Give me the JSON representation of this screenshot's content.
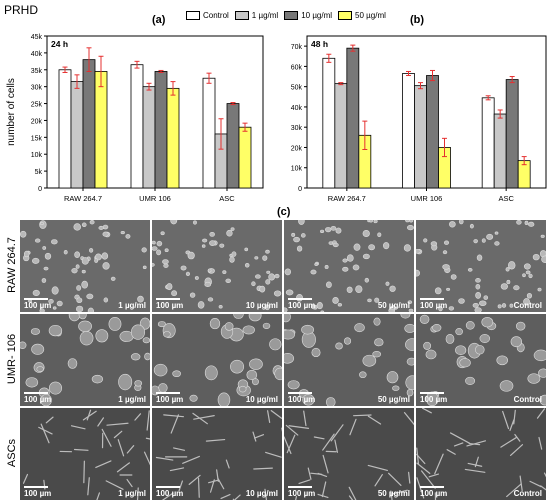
{
  "figure": {
    "header": "PRHD",
    "panel_a_label": "(a)",
    "panel_b_label": "(b)",
    "panel_c_label": "(c)"
  },
  "legend": {
    "entries": [
      {
        "label": "Control",
        "color": "#ffffff"
      },
      {
        "label": "1  µg/ml",
        "color": "#c8c8c8"
      },
      {
        "label": "10 µg/ml",
        "color": "#787878"
      },
      {
        "label": "50 µg/ml",
        "color": "#ffff66"
      }
    ]
  },
  "chart_data": [
    {
      "type": "bar",
      "panel": "(a)",
      "inset_label": "24 h",
      "ylabel": "number of cells",
      "ylim": [
        0,
        45000
      ],
      "yticks": [
        "0",
        "5k",
        "10k",
        "15k",
        "20k",
        "25k",
        "30k",
        "35k",
        "40k",
        "45k"
      ],
      "categories": [
        "RAW 264.7",
        "UMR 106",
        "ASC"
      ],
      "series": [
        {
          "name": "Control",
          "color": "#ffffff",
          "values": [
            35000,
            36500,
            32500
          ],
          "errors": [
            800,
            1000,
            1500
          ]
        },
        {
          "name": "1  µg/ml",
          "color": "#c8c8c8",
          "values": [
            31500,
            30000,
            16000
          ],
          "errors": [
            2000,
            1000,
            4500
          ]
        },
        {
          "name": "10 µg/ml",
          "color": "#787878",
          "values": [
            38000,
            34500,
            25000
          ],
          "errors": [
            3500,
            300,
            300
          ]
        },
        {
          "name": "50 µg/ml",
          "color": "#ffff66",
          "values": [
            34500,
            29500,
            18000
          ],
          "errors": [
            4500,
            2000,
            1200
          ]
        }
      ]
    },
    {
      "type": "bar",
      "panel": "(b)",
      "inset_label": "48 h",
      "ylabel": "",
      "ylim": [
        0,
        75000
      ],
      "yticks": [
        "0",
        "10k",
        "20k",
        "30k",
        "40k",
        "50k",
        "60k",
        "70k"
      ],
      "categories": [
        "RAW 264.7",
        "UMR 106",
        "ASC"
      ],
      "series": [
        {
          "name": "Control",
          "color": "#ffffff",
          "values": [
            64000,
            56500,
            44500
          ],
          "errors": [
            2000,
            1000,
            1000
          ]
        },
        {
          "name": "1  µg/ml",
          "color": "#c8c8c8",
          "values": [
            51500,
            50500,
            36500
          ],
          "errors": [
            500,
            1500,
            2000
          ]
        },
        {
          "name": "10 µg/ml",
          "color": "#787878",
          "values": [
            69000,
            55500,
            53500
          ],
          "errors": [
            1500,
            2500,
            1500
          ]
        },
        {
          "name": "50 µg/ml",
          "color": "#ffff66",
          "values": [
            26000,
            20000,
            13500
          ],
          "errors": [
            7000,
            4500,
            2000
          ]
        }
      ]
    }
  ],
  "micrographs": {
    "scale_label": "100 µm",
    "columns": [
      "1 µg/ml",
      "10 µg/ml",
      "50 µg/ml",
      "Control"
    ],
    "rows": [
      {
        "label": "RAW 264.7",
        "tone": "#6a6a6a"
      },
      {
        "label": "UMR- 106",
        "tone": "#5e5e5e"
      },
      {
        "label": "ASCs",
        "tone": "#4a4a4a"
      }
    ]
  }
}
